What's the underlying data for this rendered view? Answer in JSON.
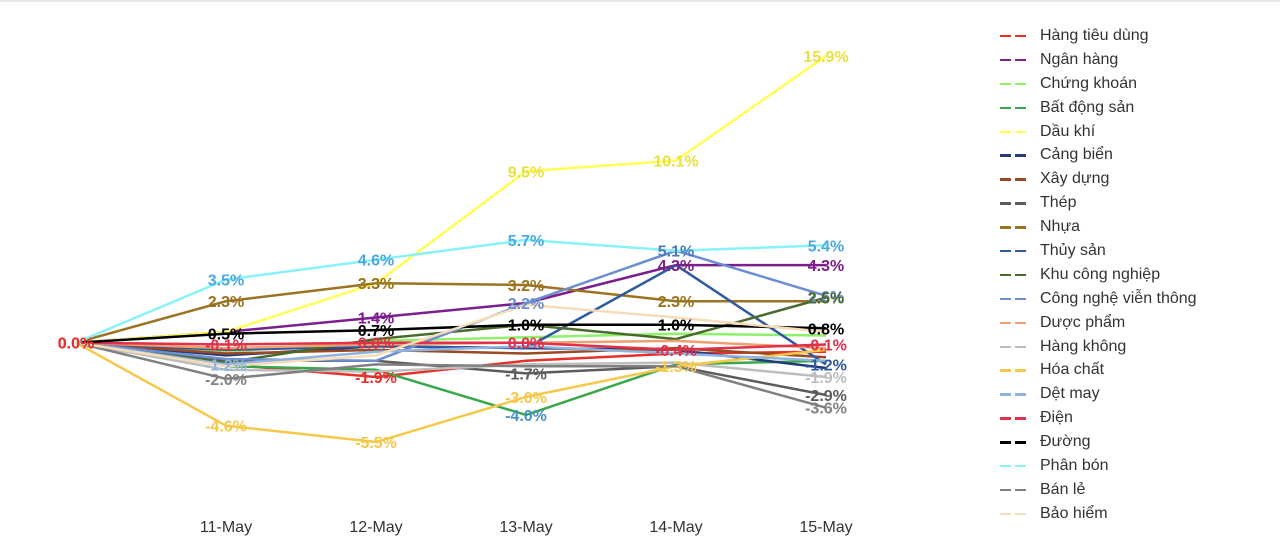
{
  "chart_data": {
    "type": "line",
    "categories": [
      "",
      "11-May",
      "12-May",
      "13-May",
      "14-May",
      "15-May"
    ],
    "ylim": [
      -6.5,
      17
    ],
    "grid": false,
    "legend_position": "right",
    "value_suffix": "%",
    "series": [
      {
        "name": "Hàng tiêu dùng",
        "color": "#e8302a",
        "values": [
          0.0,
          -1.2,
          -1.9,
          -1.0,
          -0.6,
          -0.5
        ]
      },
      {
        "name": "Ngân hàng",
        "color": "#7a1f8c",
        "values": [
          0.0,
          0.6,
          1.4,
          2.2,
          4.3,
          4.3
        ]
      },
      {
        "name": "Chứng khoán",
        "color": "#8ff06a",
        "values": [
          0.0,
          -0.5,
          0.1,
          0.3,
          0.5,
          0.4
        ]
      },
      {
        "name": "Bất động sản",
        "color": "#3aa84a",
        "values": [
          0.0,
          -1.3,
          -1.5,
          -4.0,
          -1.2,
          -1.0
        ]
      },
      {
        "name": "Dầu khí",
        "color": "#ffff55",
        "values": [
          0.0,
          0.6,
          3.3,
          9.5,
          10.1,
          15.9
        ]
      },
      {
        "name": "Cảng biển",
        "color": "#253a78",
        "values": [
          0.0,
          -0.7,
          -0.2,
          -0.3,
          -0.4,
          -1.4
        ]
      },
      {
        "name": "Xây dựng",
        "color": "#9a4a22",
        "values": [
          0.0,
          -0.6,
          -0.4,
          -0.6,
          -0.3,
          -0.8
        ]
      },
      {
        "name": "Thép",
        "color": "#5c5c5c",
        "values": [
          0.0,
          -1.0,
          -1.0,
          -1.7,
          -1.3,
          -2.9
        ]
      },
      {
        "name": "Nhựa",
        "color": "#9a7420",
        "values": [
          0.0,
          2.3,
          3.3,
          3.2,
          2.3,
          2.3
        ]
      },
      {
        "name": "Thủy sản",
        "color": "#2f5aa0",
        "values": [
          0.0,
          -0.4,
          -0.2,
          -0.3,
          4.3,
          -1.2
        ]
      },
      {
        "name": "Khu công nghiệp",
        "color": "#4a6a2c",
        "values": [
          0.0,
          -1.1,
          0.2,
          1.0,
          0.2,
          2.5
        ]
      },
      {
        "name": "Công nghệ viễn thông",
        "color": "#6b8fd0",
        "values": [
          0.0,
          -0.9,
          -1.0,
          2.2,
          5.1,
          2.6
        ]
      },
      {
        "name": "Dược phẩm",
        "color": "#f0a070",
        "values": [
          0.0,
          -0.3,
          -0.1,
          0.0,
          0.1,
          -0.3
        ]
      },
      {
        "name": "Hàng không",
        "color": "#bdbdbd",
        "values": [
          0.0,
          -1.5,
          -1.6,
          -1.2,
          -1.1,
          -1.9
        ]
      },
      {
        "name": "Hóa chất",
        "color": "#f5c84a",
        "values": [
          0.0,
          -4.6,
          -5.5,
          -3.0,
          -1.3,
          -0.4
        ]
      },
      {
        "name": "Dệt may",
        "color": "#8fb4e0",
        "values": [
          0.0,
          -1.2,
          -0.5,
          -0.2,
          -0.6,
          -1.0
        ]
      },
      {
        "name": "Điện",
        "color": "#e0304a",
        "values": [
          0.0,
          -0.1,
          0.0,
          0.0,
          -0.4,
          -0.1
        ]
      },
      {
        "name": "Đường",
        "color": "#000000",
        "values": [
          0.0,
          0.5,
          0.7,
          1.0,
          1.0,
          0.8
        ]
      },
      {
        "name": "Phân bón",
        "color": "#88f2f8",
        "values": [
          0.0,
          3.5,
          4.6,
          5.7,
          5.1,
          5.4
        ]
      },
      {
        "name": "Bán lẻ",
        "color": "#808080",
        "values": [
          0.0,
          -2.0,
          -1.2,
          -1.3,
          -1.3,
          -3.6
        ]
      },
      {
        "name": "Bảo hiểm",
        "color": "#f6ddb8",
        "values": [
          0.0,
          -1.3,
          -0.7,
          2.1,
          1.4,
          0.6
        ]
      }
    ],
    "data_labels": [
      {
        "series": 0,
        "point": 0,
        "text": "0.0%",
        "color": "#e8302a"
      },
      {
        "series": 1,
        "point": 0,
        "text": "0.0%",
        "color": "#e8302a"
      },
      {
        "series": 16,
        "point": 1,
        "text": "-0.1%",
        "color": "#e0304a"
      },
      {
        "series": 17,
        "point": 1,
        "text": "0.5%",
        "color": "#000000"
      },
      {
        "series": 8,
        "point": 1,
        "text": "2.3%",
        "color": "#9a7420"
      },
      {
        "series": 18,
        "point": 1,
        "text": "3.5%",
        "color": "#4aa8e0"
      },
      {
        "series": 14,
        "point": 1,
        "text": "-4.6%",
        "color": "#f5c84a"
      },
      {
        "series": 19,
        "point": 1,
        "text": "-2.0%",
        "color": "#808080"
      },
      {
        "series": 15,
        "point": 1,
        "text": "-1.2%",
        "color": "#8fb4e0"
      },
      {
        "series": 18,
        "point": 2,
        "text": "4.6%",
        "color": "#4aa8e0"
      },
      {
        "series": 4,
        "point": 2,
        "text": "3.3%",
        "color": "#e8e040"
      },
      {
        "series": 8,
        "point": 2,
        "text": "3.3%",
        "color": "#9a7420"
      },
      {
        "series": 1,
        "point": 2,
        "text": "1.4%",
        "color": "#7a1f8c"
      },
      {
        "series": 17,
        "point": 2,
        "text": "0.7%",
        "color": "#000000"
      },
      {
        "series": 16,
        "point": 2,
        "text": "0.0%",
        "color": "#e0304a"
      },
      {
        "series": 0,
        "point": 2,
        "text": "-1.9%",
        "color": "#e8302a"
      },
      {
        "series": 14,
        "point": 2,
        "text": "-5.5%",
        "color": "#f5c84a"
      },
      {
        "series": 4,
        "point": 3,
        "text": "9.5%",
        "color": "#e8e040"
      },
      {
        "series": 18,
        "point": 3,
        "text": "5.7%",
        "color": "#4aa8e0"
      },
      {
        "series": 8,
        "point": 3,
        "text": "3.2%",
        "color": "#9a7420"
      },
      {
        "series": 11,
        "point": 3,
        "text": "2.2%",
        "color": "#6b8fd0"
      },
      {
        "series": 17,
        "point": 3,
        "text": "1.0%",
        "color": "#000000"
      },
      {
        "series": 16,
        "point": 3,
        "text": "0.0%",
        "color": "#e0304a"
      },
      {
        "series": 7,
        "point": 3,
        "text": "-1.7%",
        "color": "#5c5c5c"
      },
      {
        "series": 14,
        "point": 3,
        "text": "-3.0%",
        "color": "#f5c84a"
      },
      {
        "series": 3,
        "point": 3,
        "text": "-4.0%",
        "color": "#4a90c8"
      },
      {
        "series": 4,
        "point": 4,
        "text": "10.1%",
        "color": "#e8e040"
      },
      {
        "series": 11,
        "point": 4,
        "text": "5.1%",
        "color": "#4a7ac0"
      },
      {
        "series": 1,
        "point": 4,
        "text": "4.3%",
        "color": "#7a1f8c"
      },
      {
        "series": 8,
        "point": 4,
        "text": "2.3%",
        "color": "#9a7420"
      },
      {
        "series": 17,
        "point": 4,
        "text": "1.0%",
        "color": "#000000"
      },
      {
        "series": 16,
        "point": 4,
        "text": "-0.4%",
        "color": "#e0304a"
      },
      {
        "series": 14,
        "point": 4,
        "text": "-1.3%",
        "color": "#f5c84a"
      },
      {
        "series": 4,
        "point": 5,
        "text": "15.9%",
        "color": "#e8e040"
      },
      {
        "series": 18,
        "point": 5,
        "text": "5.4%",
        "color": "#4aa8e0"
      },
      {
        "series": 1,
        "point": 5,
        "text": "4.3%",
        "color": "#7a1f8c"
      },
      {
        "series": 11,
        "point": 5,
        "text": "2.6%",
        "color": "#6b8fd0"
      },
      {
        "series": 10,
        "point": 5,
        "text": "2.5%",
        "color": "#4a6a2c"
      },
      {
        "series": 17,
        "point": 5,
        "text": "0.8%",
        "color": "#000000"
      },
      {
        "series": 16,
        "point": 5,
        "text": "-0.1%",
        "color": "#e0304a"
      },
      {
        "series": 9,
        "point": 5,
        "text": "-1.2%",
        "color": "#2f5aa0"
      },
      {
        "series": 13,
        "point": 5,
        "text": "-1.9%",
        "color": "#bdbdbd"
      },
      {
        "series": 7,
        "point": 5,
        "text": "-2.9%",
        "color": "#5c5c5c"
      },
      {
        "series": 19,
        "point": 5,
        "text": "-3.6%",
        "color": "#808080"
      }
    ]
  }
}
